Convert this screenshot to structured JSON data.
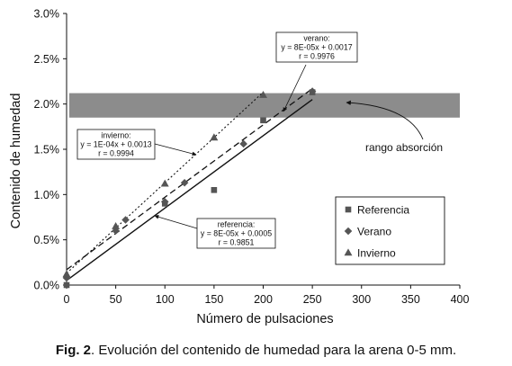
{
  "caption": {
    "label": "Fig. 2",
    "text": ". Evolución del contenido de humedad para la arena 0-5 mm."
  },
  "chart_data": {
    "type": "scatter",
    "xlabel": "Número de pulsaciones",
    "ylabel": "Contenido de humedad",
    "xlim": [
      0,
      400
    ],
    "ylim": [
      0,
      3.0
    ],
    "x_ticks": [
      "0",
      "50",
      "100",
      "150",
      "200",
      "250",
      "300",
      "350",
      "400"
    ],
    "y_ticks": [
      "0.0%",
      "0.5%",
      "1.0%",
      "1.5%",
      "2.0%",
      "2.5%",
      "3.0%"
    ],
    "grid": false,
    "legend_position": "right",
    "band": {
      "label": "rango absorción",
      "y_from": 1.85,
      "y_to": 2.12,
      "color": "#8c8c8c"
    },
    "series": [
      {
        "name": "Referencia",
        "marker": "square",
        "color": "#555555",
        "x": [
          0,
          100,
          150,
          200,
          250
        ],
        "y": [
          0.0,
          0.9,
          1.05,
          1.82,
          2.13
        ],
        "fit": {
          "eq": "y = 8E-05x + 0.0005",
          "r": "r = 0.9851",
          "title": "referencia:",
          "slope": 0.008,
          "intercept": 0.05,
          "style": "solid"
        }
      },
      {
        "name": "Verano",
        "marker": "diamond",
        "color": "#555555",
        "x": [
          0,
          50,
          60,
          100,
          120,
          180,
          250
        ],
        "y": [
          0.08,
          0.6,
          0.72,
          0.92,
          1.13,
          1.56,
          2.14
        ],
        "fit": {
          "eq": "y = 8E-05x + 0.0017",
          "r": "r = 0.9976",
          "title": "verano:",
          "slope": 0.008,
          "intercept": 0.17,
          "style": "dashed"
        }
      },
      {
        "name": "Invierno",
        "marker": "triangle",
        "color": "#555555",
        "x": [
          0,
          50,
          100,
          150,
          200
        ],
        "y": [
          0.12,
          0.65,
          1.12,
          1.63,
          2.1
        ],
        "fit": {
          "eq": "y = 1E-04x + 0.0013",
          "r": "r = 0.9994",
          "title": "invierno:",
          "slope": 0.01,
          "intercept": 0.13,
          "style": "dotted"
        }
      }
    ]
  }
}
